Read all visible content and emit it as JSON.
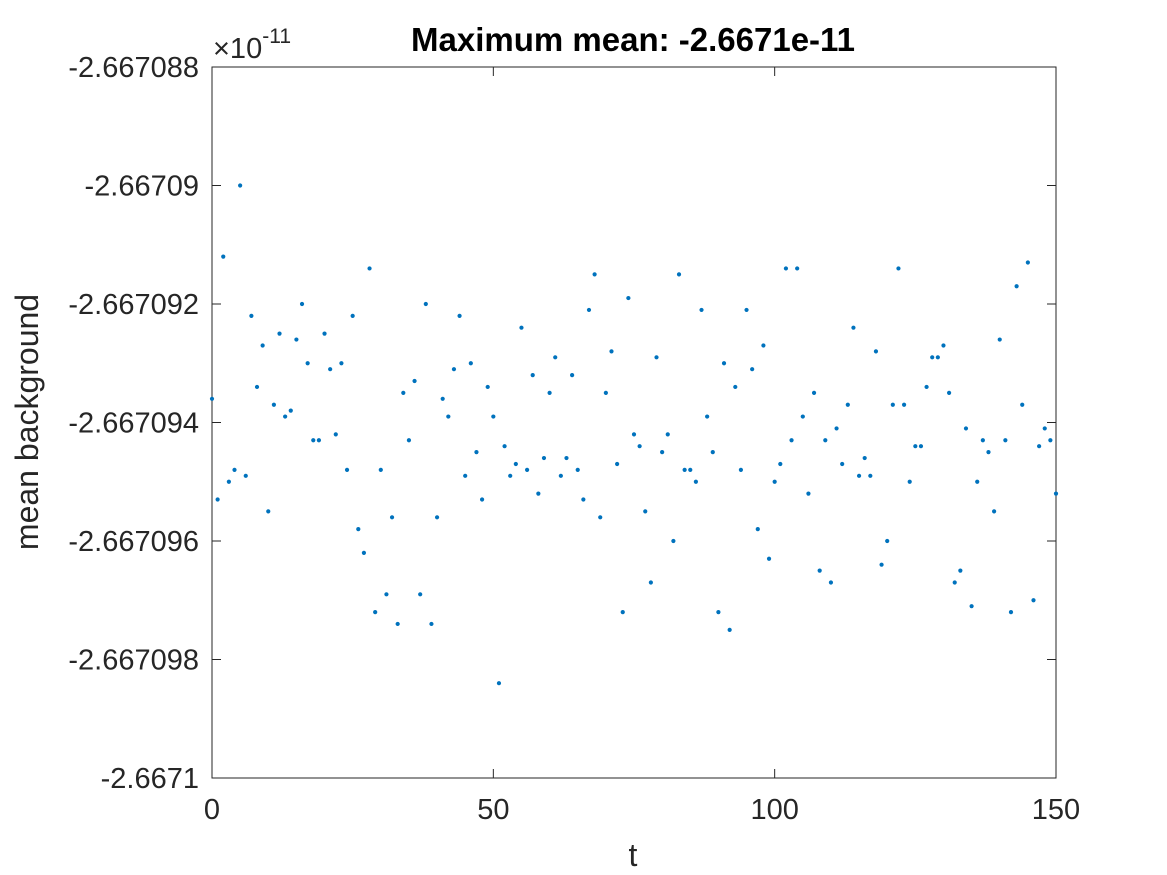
{
  "chart_data": {
    "type": "scatter",
    "title": "Maximum mean: -2.6671e-11",
    "xlabel": "t",
    "ylabel": "mean background",
    "exponent_label": "×10",
    "exponent_power": "-11",
    "xlim": [
      0,
      150
    ],
    "ylim": [
      -2.6671,
      -2.667088
    ],
    "xticks": [
      0,
      50,
      100,
      150
    ],
    "xtick_labels": [
      "0",
      "50",
      "100",
      "150"
    ],
    "yticks": [
      -2.6671,
      -2.667098,
      -2.667096,
      -2.667094,
      -2.667092,
      -2.66709,
      -2.667088
    ],
    "ytick_labels": [
      "-2.6671",
      "-2.667098",
      "-2.667096",
      "-2.667094",
      "-2.667092",
      "-2.66709",
      "-2.667088"
    ],
    "grid": false,
    "marker_color": "#0072BD",
    "series": [
      {
        "x": [
          0,
          1,
          2,
          3,
          4,
          5,
          6,
          7,
          8,
          9,
          10,
          11,
          12,
          13,
          14,
          15,
          16,
          17,
          18,
          19,
          20,
          21,
          22,
          23,
          24,
          25,
          26,
          27,
          28,
          29,
          30,
          31,
          32,
          33,
          34,
          35,
          36,
          37,
          38,
          39,
          40,
          41,
          42,
          43,
          44,
          45,
          46,
          47,
          48,
          49,
          50,
          51,
          52,
          53,
          54,
          55,
          56,
          57,
          58,
          59,
          60,
          61,
          62,
          63,
          64,
          65,
          66,
          67,
          68,
          69,
          70,
          71,
          72,
          73,
          74,
          75,
          76,
          77,
          78,
          79,
          80,
          81,
          82,
          83,
          84,
          85,
          86,
          87,
          88,
          89,
          90,
          91,
          92,
          93,
          94,
          95,
          96,
          97,
          98,
          99,
          100,
          101,
          102,
          103,
          104,
          105,
          106,
          107,
          108,
          109,
          110,
          111,
          112,
          113,
          114,
          115,
          116,
          117,
          118,
          119,
          120,
          121,
          122,
          123,
          124,
          125,
          126,
          127,
          128,
          129,
          130,
          131,
          132,
          133,
          134,
          135,
          136,
          137,
          138,
          139,
          140,
          141,
          142,
          143,
          144,
          145,
          146,
          147,
          148,
          149,
          150
        ],
        "y": [
          -2.6670936,
          -2.6670953,
          -2.6670912,
          -2.667095,
          -2.6670948,
          -2.66709,
          -2.6670949,
          -2.6670922,
          -2.6670934,
          -2.6670927,
          -2.6670955,
          -2.6670937,
          -2.6670925,
          -2.6670939,
          -2.6670938,
          -2.6670926,
          -2.667092,
          -2.667093,
          -2.6670943,
          -2.6670943,
          -2.6670925,
          -2.6670931,
          -2.6670942,
          -2.667093,
          -2.6670948,
          -2.6670922,
          -2.6670958,
          -2.6670962,
          -2.6670914,
          -2.6670972,
          -2.6670948,
          -2.6670969,
          -2.6670956,
          -2.6670974,
          -2.6670935,
          -2.6670943,
          -2.6670933,
          -2.6670969,
          -2.667092,
          -2.6670974,
          -2.6670956,
          -2.6670936,
          -2.6670939,
          -2.6670931,
          -2.6670922,
          -2.6670949,
          -2.667093,
          -2.6670945,
          -2.6670953,
          -2.6670934,
          -2.6670939,
          -2.6670984,
          -2.6670944,
          -2.6670949,
          -2.6670947,
          -2.6670924,
          -2.6670948,
          -2.6670932,
          -2.6670952,
          -2.6670946,
          -2.6670935,
          -2.6670929,
          -2.6670949,
          -2.6670946,
          -2.6670932,
          -2.6670948,
          -2.6670953,
          -2.6670921,
          -2.6670915,
          -2.6670956,
          -2.6670935,
          -2.6670928,
          -2.6670947,
          -2.6670972,
          -2.6670919,
          -2.6670942,
          -2.6670944,
          -2.6670955,
          -2.6670967,
          -2.6670929,
          -2.6670945,
          -2.6670942,
          -2.667096,
          -2.6670915,
          -2.6670948,
          -2.6670948,
          -2.667095,
          -2.6670921,
          -2.6670939,
          -2.6670945,
          -2.6670972,
          -2.667093,
          -2.6670975,
          -2.6670934,
          -2.6670948,
          -2.6670921,
          -2.6670931,
          -2.6670958,
          -2.6670927,
          -2.6670963,
          -2.667095,
          -2.6670947,
          -2.6670914,
          -2.6670943,
          -2.6670914,
          -2.6670939,
          -2.6670952,
          -2.6670935,
          -2.6670965,
          -2.6670943,
          -2.6670967,
          -2.6670941,
          -2.6670947,
          -2.6670937,
          -2.6670924,
          -2.6670949,
          -2.6670946,
          -2.6670949,
          -2.6670928,
          -2.6670964,
          -2.667096,
          -2.6670937,
          -2.6670914,
          -2.6670937,
          -2.667095,
          -2.6670944,
          -2.6670944,
          -2.6670934,
          -2.6670929,
          -2.6670929,
          -2.6670927,
          -2.6670935,
          -2.6670967,
          -2.6670965,
          -2.6670941,
          -2.6670971,
          -2.667095,
          -2.6670943,
          -2.6670945,
          -2.6670955,
          -2.6670926,
          -2.6670943,
          -2.6670972,
          -2.6670917,
          -2.6670937,
          -2.6670913,
          -2.667097,
          -2.6670944,
          -2.6670941,
          -2.6670943,
          -2.6670952
        ]
      }
    ]
  }
}
